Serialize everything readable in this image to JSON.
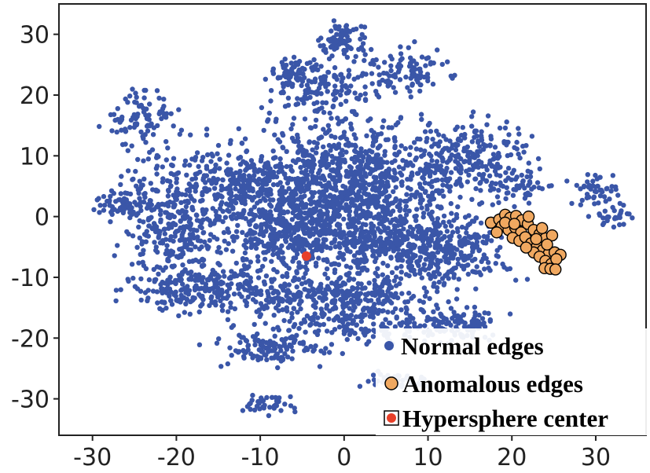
{
  "chart_data": {
    "type": "scatter",
    "title": "",
    "xlabel": "",
    "ylabel": "",
    "xlim": [
      -34,
      36
    ],
    "ylim": [
      -36,
      35
    ],
    "xticks": [
      -30,
      -20,
      -10,
      0,
      10,
      20,
      30
    ],
    "yticks": [
      -30,
      -20,
      -10,
      0,
      10,
      20,
      30
    ],
    "grid": false,
    "legend_position": "bottom-right",
    "colors": {
      "normal": "#3a56a8",
      "normal_faded": "#9aaed8",
      "anomalous": "#f0a860",
      "anomalous_edge": "#000000",
      "center": "#e8402a",
      "frame": "#222222"
    },
    "legend": [
      {
        "label": "Normal edges",
        "series": "normal"
      },
      {
        "label": "Anomalous edges",
        "series": "anomalous"
      },
      {
        "label": "Hypersphere center",
        "series": "center"
      }
    ],
    "series": [
      {
        "name": "Normal edges",
        "kind": "clusters",
        "clusters": [
          {
            "cx": 0,
            "cy": 5,
            "rx": 13,
            "ry": 10,
            "n": 1100
          },
          {
            "cx": -5,
            "cy": -3,
            "rx": 9,
            "ry": 6,
            "n": 450
          },
          {
            "cx": 10,
            "cy": -5,
            "rx": 9,
            "ry": 6,
            "n": 450
          },
          {
            "cx": -20,
            "cy": 0,
            "rx": 6,
            "ry": 10,
            "n": 380
          },
          {
            "cx": -17,
            "cy": -12,
            "rx": 8,
            "ry": 4,
            "n": 220
          },
          {
            "cx": 2,
            "cy": -16,
            "rx": 12,
            "ry": 5,
            "n": 320
          },
          {
            "cx": -9,
            "cy": -22,
            "rx": 6,
            "ry": 2.5,
            "n": 110
          },
          {
            "cx": 14,
            "cy": -18,
            "rx": 5,
            "ry": 2.5,
            "n": 90
          },
          {
            "cx": 15,
            "cy": 10,
            "rx": 7,
            "ry": 6,
            "n": 220
          },
          {
            "cx": -2,
            "cy": 21,
            "rx": 6,
            "ry": 4,
            "n": 130
          },
          {
            "cx": 7,
            "cy": 24,
            "rx": 5,
            "ry": 4,
            "n": 100
          },
          {
            "cx": -6,
            "cy": 24,
            "rx": 3,
            "ry": 2,
            "n": 60
          },
          {
            "cx": 0,
            "cy": 29,
            "rx": 3,
            "ry": 2.5,
            "n": 80
          },
          {
            "cx": -24,
            "cy": 16,
            "rx": 4,
            "ry": 5,
            "n": 90
          },
          {
            "cx": -27,
            "cy": 2,
            "rx": 3,
            "ry": 2,
            "n": 50
          },
          {
            "cx": 30,
            "cy": 4,
            "rx": 3,
            "ry": 3,
            "n": 50
          },
          {
            "cx": 32,
            "cy": 0,
            "rx": 2,
            "ry": 1.5,
            "n": 25
          },
          {
            "cx": 21,
            "cy": 5,
            "rx": 3,
            "ry": 3,
            "n": 40
          },
          {
            "cx": -9,
            "cy": -31,
            "rx": 3,
            "ry": 1.5,
            "n": 40
          },
          {
            "cx": 7,
            "cy": -27,
            "rx": 4,
            "ry": 1.5,
            "n": 40
          },
          {
            "cx": -3,
            "cy": -12,
            "rx": 12,
            "ry": 3,
            "n": 200
          },
          {
            "cx": -12,
            "cy": 6,
            "rx": 5,
            "ry": 4,
            "n": 150
          }
        ]
      },
      {
        "name": "Anomalous edges",
        "points": [
          [
            17.5,
            -1
          ],
          [
            18.5,
            -0.5
          ],
          [
            19.2,
            0.3
          ],
          [
            19.8,
            -0.2
          ],
          [
            20.5,
            0.1
          ],
          [
            21.2,
            -0.6
          ],
          [
            18.8,
            -1.6
          ],
          [
            19.6,
            -2.2
          ],
          [
            20.4,
            -1.8
          ],
          [
            21.1,
            -2.6
          ],
          [
            21.9,
            -1.2
          ],
          [
            22.6,
            -2.2
          ],
          [
            23.3,
            -2.9
          ],
          [
            24.0,
            -3.6
          ],
          [
            24.8,
            -3.1
          ],
          [
            20.1,
            -3.5
          ],
          [
            20.9,
            -4.0
          ],
          [
            21.6,
            -3.4
          ],
          [
            22.3,
            -4.4
          ],
          [
            23.0,
            -4.9
          ],
          [
            23.7,
            -5.5
          ],
          [
            24.4,
            -6.1
          ],
          [
            25.1,
            -5.9
          ],
          [
            25.8,
            -6.3
          ],
          [
            22.6,
            -5.9
          ],
          [
            23.3,
            -6.6
          ],
          [
            24.0,
            -7.3
          ],
          [
            24.7,
            -7.8
          ],
          [
            25.3,
            -7.0
          ],
          [
            23.9,
            -8.5
          ],
          [
            24.6,
            -8.6
          ],
          [
            25.2,
            -8.7
          ],
          [
            18.2,
            -2.6
          ],
          [
            21.7,
            -5.1
          ],
          [
            22.9,
            -3.7
          ],
          [
            19.2,
            -1.0
          ],
          [
            20.3,
            -1.2
          ],
          [
            22.0,
            0.0
          ],
          [
            23.6,
            -1.9
          ],
          [
            24.2,
            -4.6
          ]
        ]
      },
      {
        "name": "Hypersphere center",
        "points": [
          [
            -4.5,
            -6.5
          ]
        ]
      }
    ]
  }
}
